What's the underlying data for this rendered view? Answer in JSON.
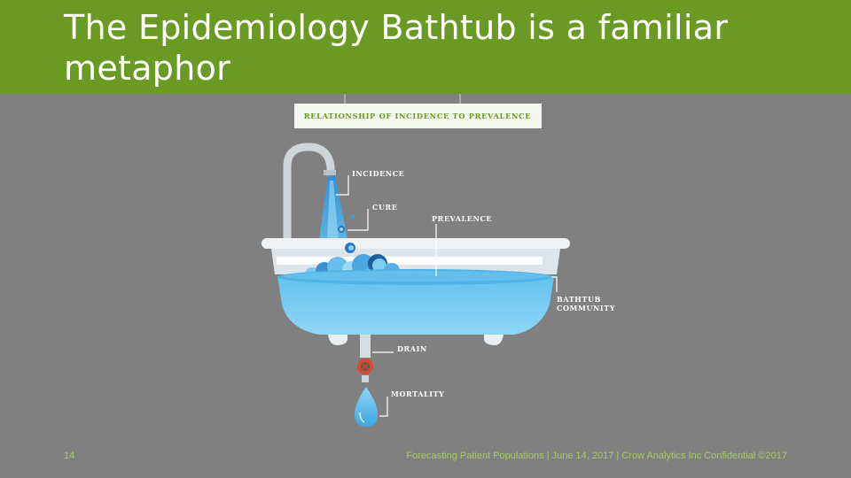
{
  "slide": {
    "title": "The Epidemiology Bathtub is a familiar metaphor",
    "page_number": "14",
    "footer": "Forecasting Patient Populations | June 14, 2017 | Crow Analytics Inc Confidential ©2017"
  },
  "diagram": {
    "banner": "RELATIONSHIP OF INCIDENCE TO PREVALENCE",
    "labels": {
      "incidence": "INCIDENCE",
      "cure": "CURE",
      "prevalence": "PREVALENCE",
      "bathtub_line1": "BATHTUB",
      "bathtub_line2": "COMMUNITY",
      "drain": "DRAIN",
      "mortality": "MORTALITY"
    },
    "colors": {
      "title_bar": "#6a9a24",
      "background": "#808080",
      "water": "#4fb3e6",
      "tub": "#e9eef1"
    }
  }
}
